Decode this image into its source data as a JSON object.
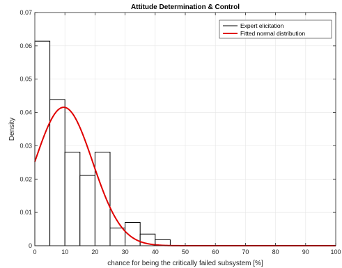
{
  "chart_data": {
    "type": "bar",
    "title": "Attitude Determination & Control",
    "xlabel": "chance for being the critically failed subsystem [%]",
    "ylabel": "Density",
    "xlim": [
      0,
      100
    ],
    "ylim": [
      0,
      0.07
    ],
    "xticks": [
      "0",
      "10",
      "20",
      "30",
      "40",
      "50",
      "60",
      "70",
      "80",
      "90",
      "100"
    ],
    "yticks": [
      "0",
      "0.01",
      "0.02",
      "0.03",
      "0.04",
      "0.05",
      "0.06",
      "0.07"
    ],
    "grid": true,
    "legend_position": "top-right",
    "histogram": {
      "name": "Expert elicitation",
      "bin_edges": [
        0,
        5,
        10,
        15,
        20,
        25,
        30,
        35,
        40,
        45
      ],
      "values": [
        0.0614,
        0.0439,
        0.0281,
        0.0211,
        0.0281,
        0.0053,
        0.007,
        0.0035,
        0.0018
      ],
      "color": "#000000"
    },
    "fit": {
      "name": "Fitted normal distribution",
      "mean": 9.6,
      "std": 9.6,
      "color": "#e00000"
    }
  }
}
